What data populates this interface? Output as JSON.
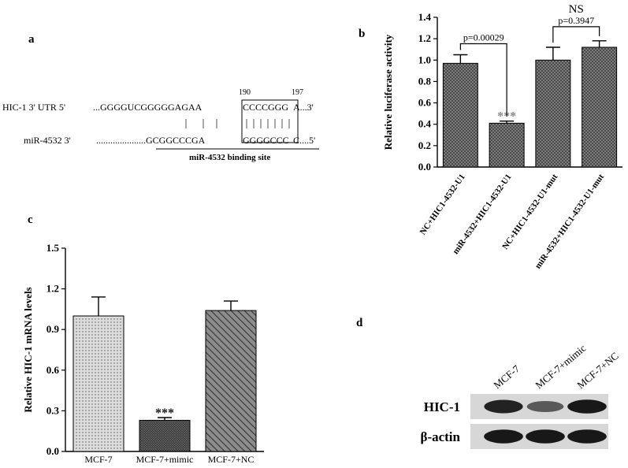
{
  "panel_a": {
    "letter": "a",
    "utr_label": "HIC-1 3' UTR  5'",
    "utr_seq_pre": "...GGGGUCGGGGGAGAA",
    "utr_seq_box": "CCCCGGG",
    "utr_seq_post": "A...3'",
    "pos_start": "190",
    "pos_end": "197",
    "mir_label": "miR-4532  3'",
    "mir_seq_pre": ".....................GCGGCCCGA",
    "mir_seq_box": "GGGGCCC",
    "mir_seq_post": "C....5'",
    "binding_label": "miR-4532 binding site"
  },
  "panel_d": {
    "letter": "d",
    "lanes": [
      "MCF-7",
      "MCF-7+mimic",
      "MCF-7+NC"
    ],
    "rows": [
      {
        "label": "HIC-1",
        "intensity": [
          0.9,
          0.6,
          0.95
        ]
      },
      {
        "label": "β-actin",
        "intensity": [
          0.95,
          0.95,
          0.95
        ]
      }
    ]
  },
  "chart_data": [
    {
      "panel": "b",
      "type": "bar",
      "categories": [
        "NC+HIC1-4532-U1",
        "miR-4532+HIC1-4532-U1",
        "NC+HIC1-4532-U1-mut",
        "miR-4532+HIC1-4532-U1-mut"
      ],
      "values": [
        0.97,
        0.41,
        1.0,
        1.12
      ],
      "errors": [
        0.08,
        0.02,
        0.12,
        0.06
      ],
      "ylabel": "Relative luciferase activity",
      "ylim": [
        0,
        1.4
      ],
      "yticks": [
        "0.0",
        "0.2",
        "0.4",
        "0.6",
        "0.8",
        "1.0",
        "1.2",
        "1.4"
      ],
      "significance": [
        {
          "bars": [
            0,
            1
          ],
          "label": "p=0.00029"
        },
        {
          "bars": [
            2,
            3
          ],
          "label": "p=0.3947",
          "extra": "NS"
        }
      ],
      "bar_star": {
        "bar": 1,
        "label": "***"
      }
    },
    {
      "panel": "c",
      "type": "bar",
      "categories": [
        "MCF-7",
        "MCF-7+mimic",
        "MCF-7+NC"
      ],
      "values": [
        1.0,
        0.23,
        1.04
      ],
      "errors": [
        0.14,
        0.02,
        0.07
      ],
      "ylabel": "Relative HIC-1 mRNA levels",
      "ylim": [
        0,
        1.5
      ],
      "yticks": [
        "0.0",
        "0.3",
        "0.6",
        "0.9",
        "1.2",
        "1.5"
      ],
      "bar_star": {
        "bar": 1,
        "label": "***"
      }
    }
  ]
}
